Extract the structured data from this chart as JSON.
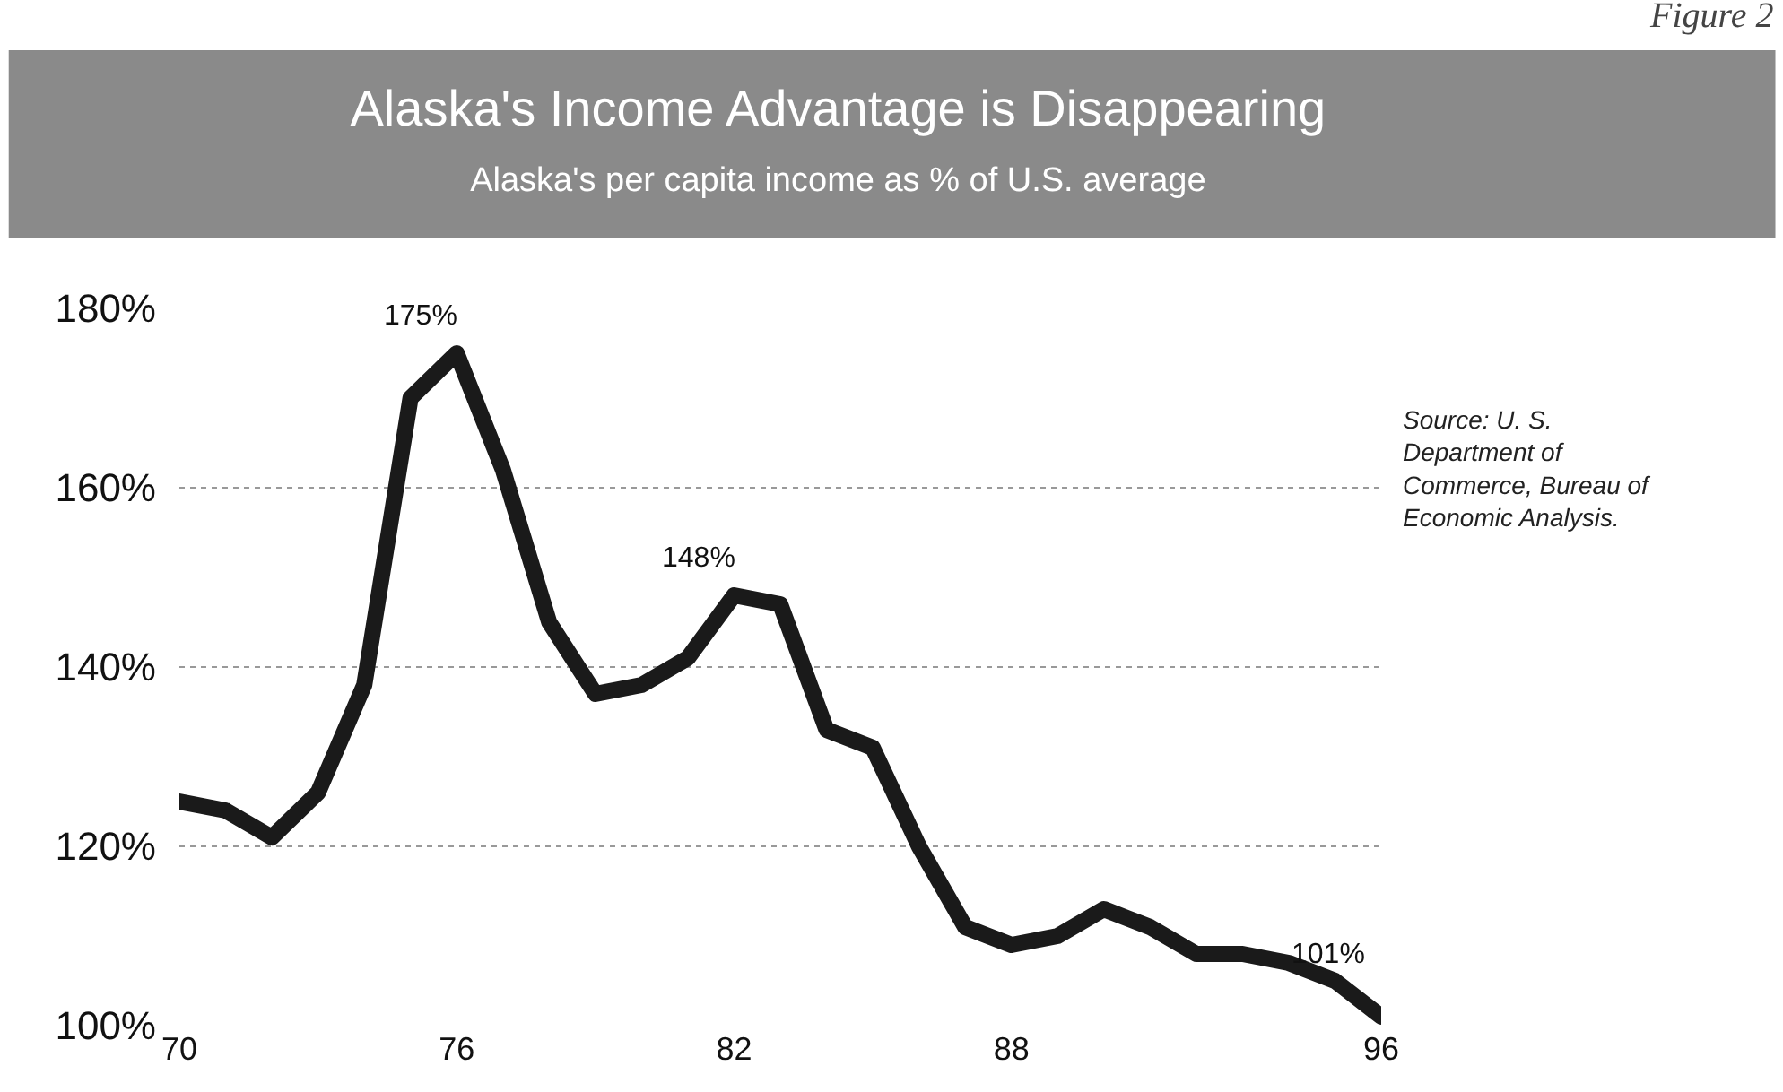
{
  "chart_data": {
    "type": "line",
    "title": "Alaska's Income Advantage is Disappearing",
    "subtitle": "Alaska's per capita income as % of U.S. average",
    "x": [
      70,
      71,
      72,
      73,
      74,
      75,
      76,
      77,
      78,
      79,
      80,
      81,
      82,
      83,
      84,
      85,
      86,
      87,
      88,
      89,
      90,
      91,
      92,
      93,
      94,
      95,
      96
    ],
    "series": [
      {
        "color": "#1a1a1a",
        "values": [
          125,
          124,
          121,
          126,
          138,
          170,
          175,
          162,
          145,
          137,
          138,
          141,
          148,
          147,
          133,
          131,
          120,
          111,
          109,
          110,
          113,
          111,
          108,
          108,
          107,
          105,
          101
        ]
      }
    ],
    "xlim": [
      70,
      96
    ],
    "xticks": [
      70,
      76,
      82,
      88,
      96
    ],
    "ylim": [
      100,
      180
    ],
    "yticks": [
      {
        "value": 100,
        "label": "100%"
      },
      {
        "value": 120,
        "label": "120%"
      },
      {
        "value": 140,
        "label": "140%"
      },
      {
        "value": 160,
        "label": "160%"
      },
      {
        "value": 180,
        "label": "180%"
      }
    ],
    "grid": "y",
    "marker": "none",
    "line_style": "solid",
    "annotations": [
      {
        "text": "175%",
        "x": 76,
        "y": 175
      },
      {
        "text": "148%",
        "x": 82,
        "y": 148
      },
      {
        "text": "101%",
        "x": 96,
        "y": 101
      },
      "Source: U. S. Department of Commerce, Bureau of Economic Analysis.",
      "Figure 2"
    ]
  }
}
